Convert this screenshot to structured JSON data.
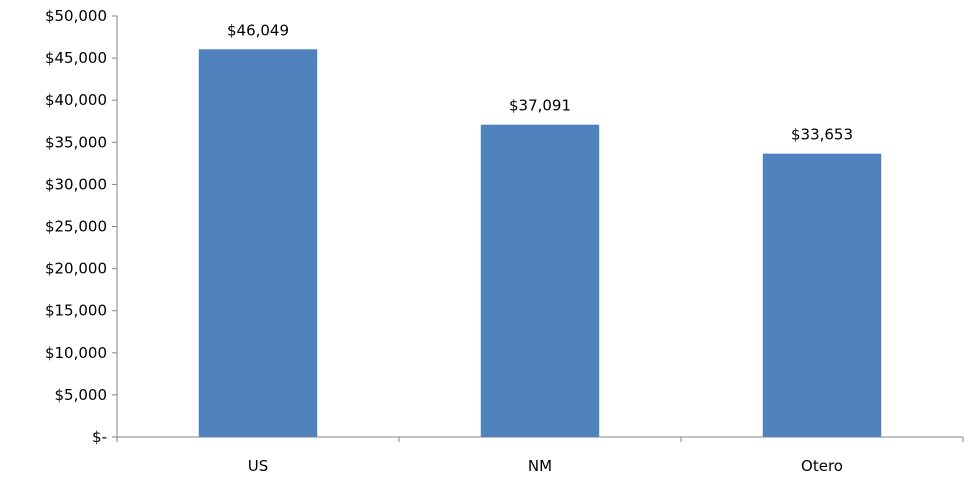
{
  "chart_data": {
    "type": "bar",
    "categories": [
      "US",
      "NM",
      "Otero"
    ],
    "values": [
      46049,
      37091,
      33653
    ],
    "data_labels": [
      "$46,049",
      "$37,091",
      "$33,653"
    ],
    "ylim": [
      0,
      50000
    ],
    "y_ticks": [
      0,
      5000,
      10000,
      15000,
      20000,
      25000,
      30000,
      35000,
      40000,
      45000,
      50000
    ],
    "y_tick_labels": [
      "$-",
      "$5,000",
      "$10,000",
      "$15,000",
      "$20,000",
      "$25,000",
      "$30,000",
      "$35,000",
      "$40,000",
      "$45,000",
      "$50,000"
    ],
    "title": "",
    "xlabel": "",
    "ylabel": "",
    "grid": false,
    "legend": "none",
    "bar_color": "#4F81BD",
    "axis_color": "#868686"
  }
}
